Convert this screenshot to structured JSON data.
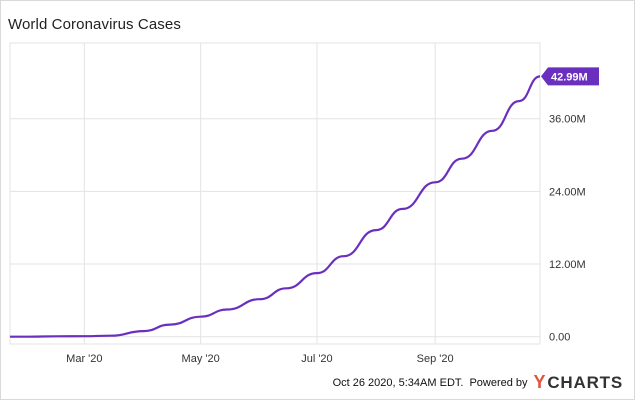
{
  "chart_data": {
    "type": "line",
    "title": "World Coronavirus Cases",
    "x": [
      "2020-01-22",
      "2020-02-01",
      "2020-02-15",
      "2020-03-01",
      "2020-03-15",
      "2020-04-01",
      "2020-04-15",
      "2020-05-01",
      "2020-05-15",
      "2020-06-01",
      "2020-06-15",
      "2020-07-01",
      "2020-07-15",
      "2020-08-01",
      "2020-08-15",
      "2020-09-01",
      "2020-09-15",
      "2020-10-01",
      "2020-10-15",
      "2020-10-26"
    ],
    "series": [
      {
        "values": [
          0.0006,
          0.012,
          0.069,
          0.088,
          0.17,
          0.93,
          2.0,
          3.3,
          4.5,
          6.2,
          8.0,
          10.5,
          13.3,
          17.6,
          21.1,
          25.5,
          29.4,
          34.0,
          38.9,
          42.99
        ],
        "color": "#6a2fbf",
        "unit": "M"
      }
    ],
    "x_ticks": [
      "Mar '20",
      "May '20",
      "Jul '20",
      "Sep '20"
    ],
    "x_tick_dates": [
      "2020-03-01",
      "2020-05-01",
      "2020-07-01",
      "2020-09-01"
    ],
    "y_ticks": [
      "0.00",
      "12.00M",
      "24.00M",
      "36.00M"
    ],
    "y_tick_values": [
      0,
      12,
      24,
      36
    ],
    "ylim": [
      -1.2,
      48.5
    ],
    "xlim": [
      "2020-01-22",
      "2020-10-26"
    ],
    "last_value_label": "42.99M",
    "y_axis_side": "right",
    "grid": true
  },
  "footer": {
    "timestamp": "Oct 26 2020, 5:34AM EDT.",
    "powered_by": "Powered by",
    "brand_mark": "Y",
    "brand_name": "CHARTS"
  },
  "colors": {
    "line": "#6a2fbf",
    "grid": "#e3e3e3"
  }
}
